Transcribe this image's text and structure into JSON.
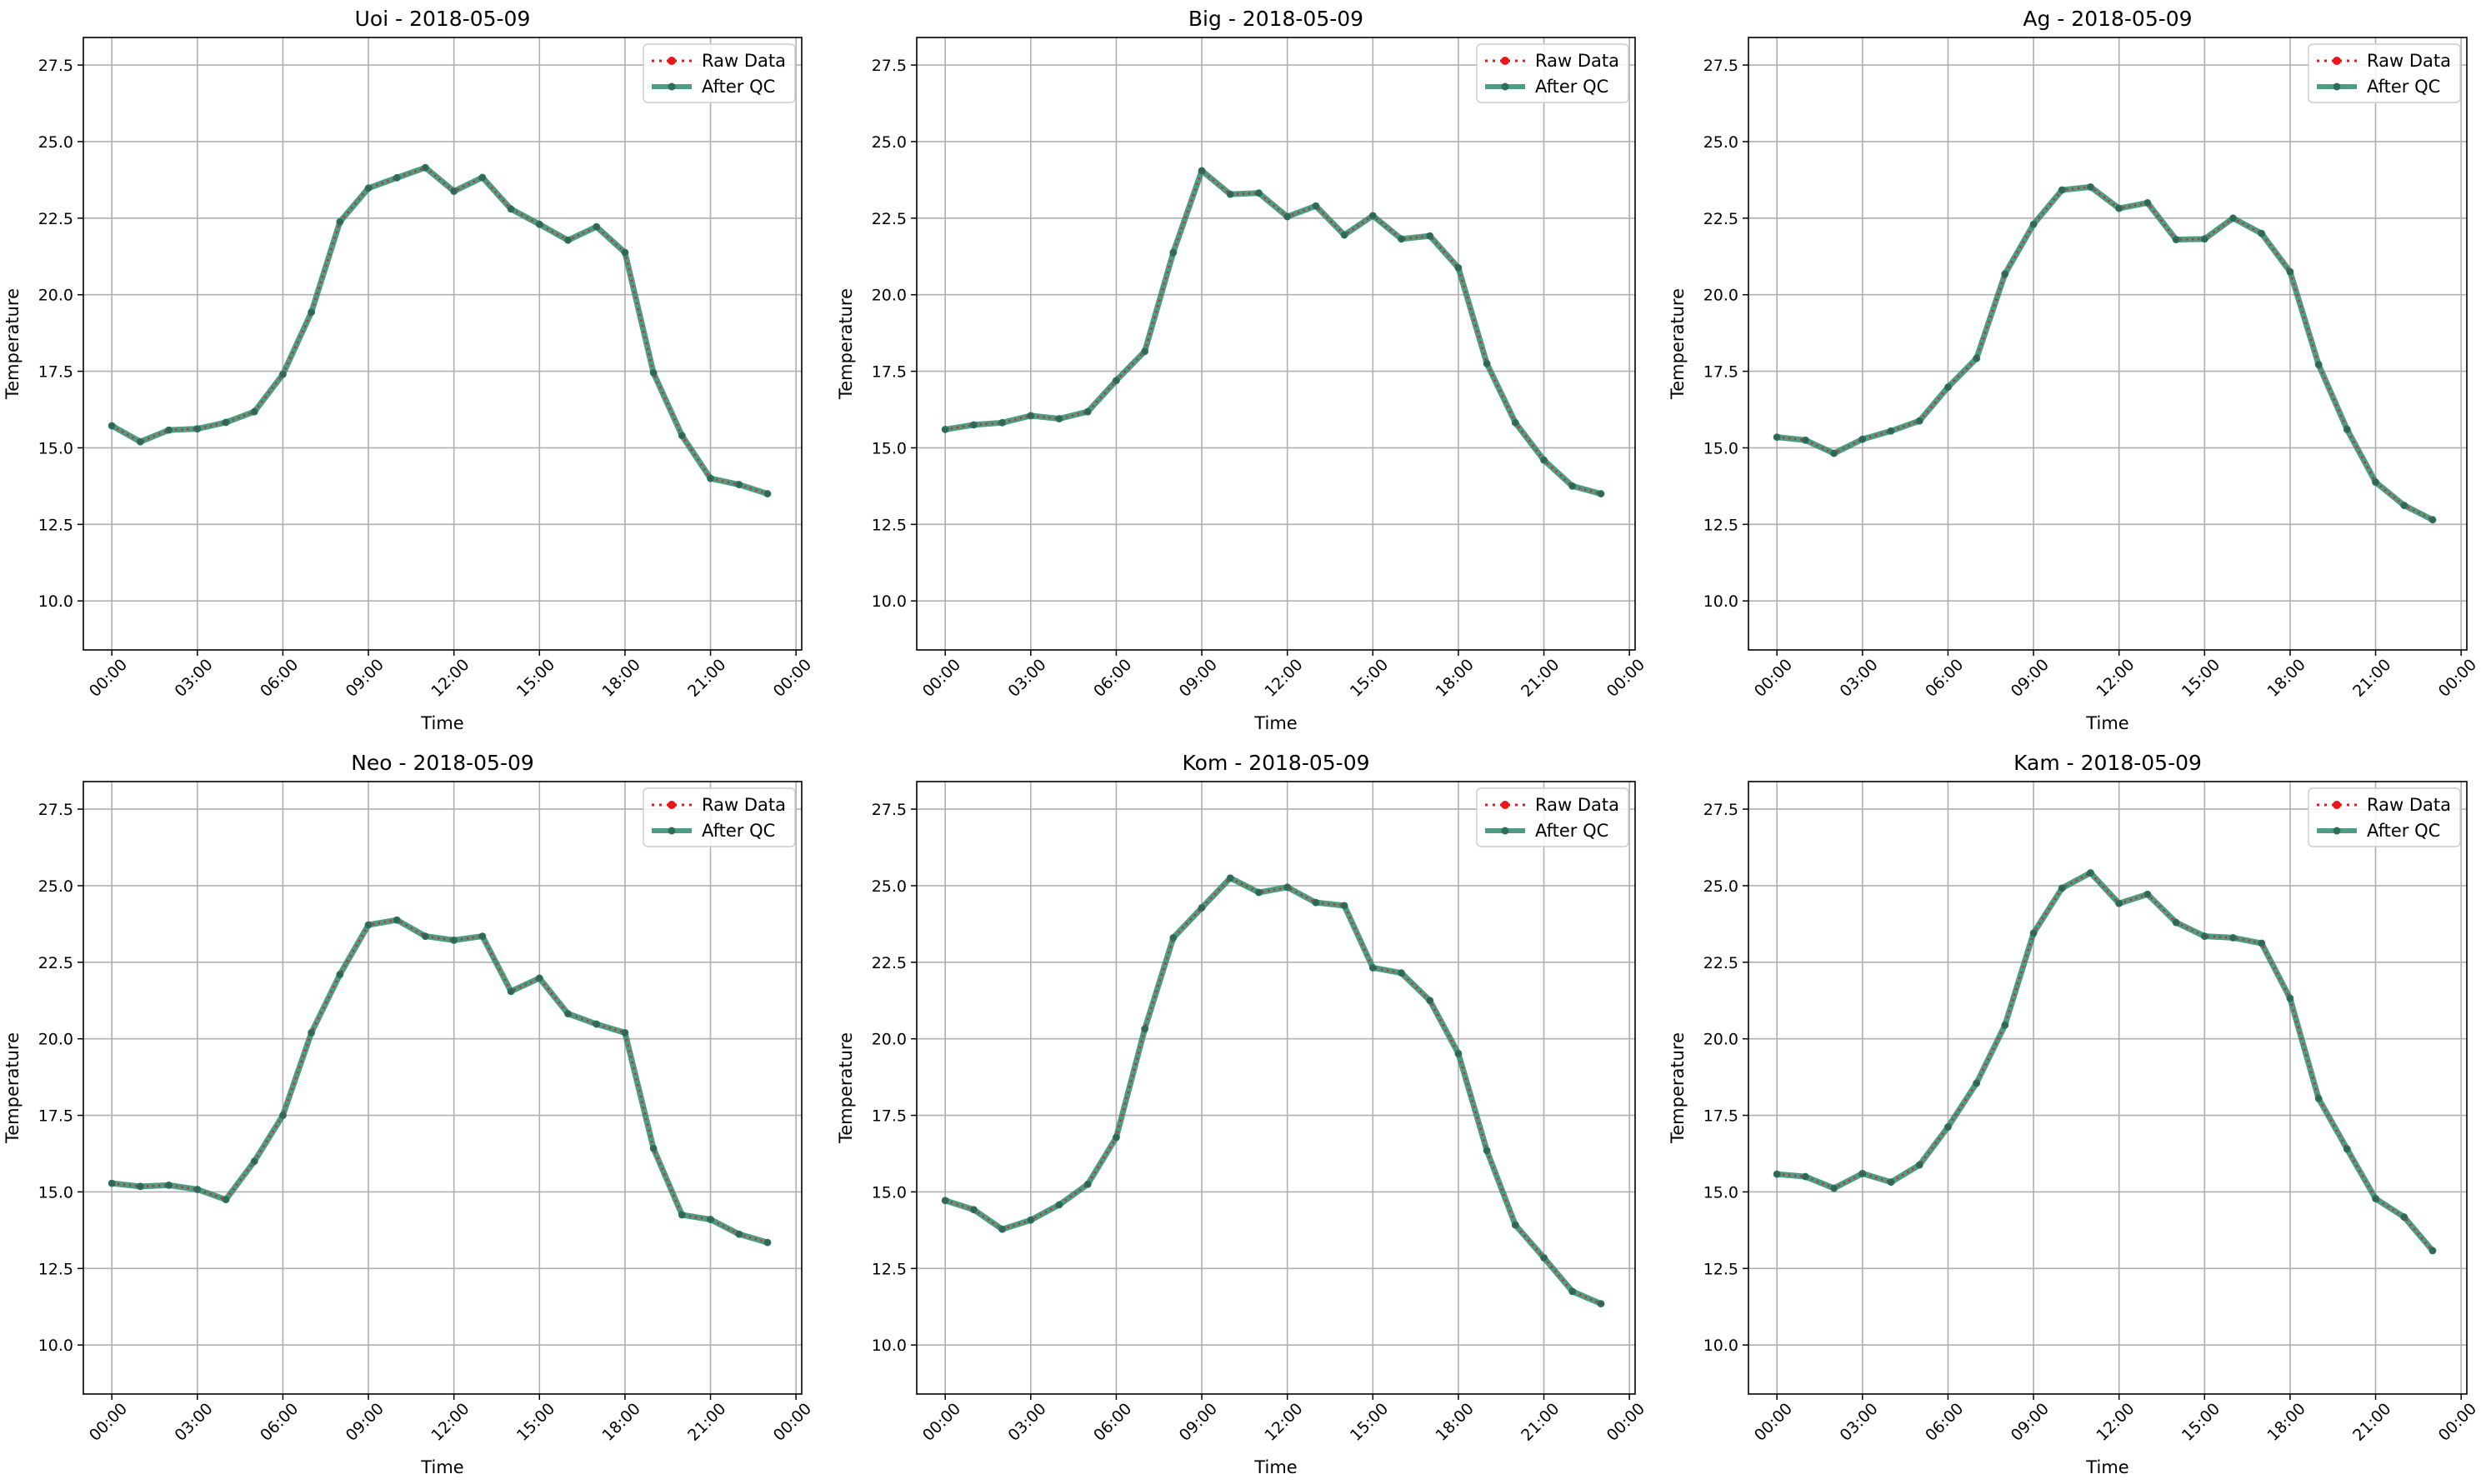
{
  "figure": {
    "x_label": "Time",
    "y_label": "Temperature",
    "x_ticks": [
      "00:00",
      "03:00",
      "06:00",
      "09:00",
      "12:00",
      "15:00",
      "18:00",
      "21:00",
      "00:00"
    ],
    "y_ticks": [
      "10.0",
      "12.5",
      "15.0",
      "17.5",
      "20.0",
      "22.5",
      "25.0",
      "27.5"
    ],
    "legend": [
      "Raw Data",
      "After QC"
    ],
    "colors": {
      "raw": "#e6191a",
      "qc": "#2e8b6e",
      "grid": "#b0b0b0"
    }
  },
  "chart_data": [
    {
      "type": "line",
      "title": "Uoi - 2018-05-09",
      "xlabel": "Time",
      "ylabel": "Temperature",
      "ylim": [
        8.4,
        28.4
      ],
      "xlim_hours": [
        -1.0,
        24.2
      ],
      "grid": true,
      "legend_position": "top-right",
      "x": [
        "00:00",
        "01:00",
        "02:00",
        "03:00",
        "04:00",
        "05:00",
        "06:00",
        "07:00",
        "08:00",
        "09:00",
        "10:00",
        "11:00",
        "12:00",
        "13:00",
        "14:00",
        "15:00",
        "16:00",
        "17:00",
        "18:00",
        "19:00",
        "20:00",
        "21:00",
        "22:00",
        "23:00"
      ],
      "series": [
        {
          "name": "Raw Data",
          "values": [
            15.72,
            15.2,
            15.58,
            15.62,
            15.83,
            16.18,
            17.4,
            19.43,
            22.38,
            23.48,
            23.82,
            24.15,
            23.38,
            23.83,
            22.8,
            22.3,
            21.78,
            22.22,
            21.38,
            17.45,
            15.4,
            14.0,
            13.8,
            13.5
          ]
        },
        {
          "name": "After QC",
          "values": [
            15.72,
            15.2,
            15.58,
            15.62,
            15.83,
            16.18,
            17.4,
            19.43,
            22.38,
            23.48,
            23.82,
            24.15,
            23.38,
            23.83,
            22.8,
            22.3,
            21.78,
            22.22,
            21.38,
            17.45,
            15.4,
            14.0,
            13.8,
            13.5
          ]
        }
      ]
    },
    {
      "type": "line",
      "title": "Big - 2018-05-09",
      "xlabel": "Time",
      "ylabel": "Temperature",
      "ylim": [
        8.4,
        28.4
      ],
      "xlim_hours": [
        -1.0,
        24.2
      ],
      "grid": true,
      "legend_position": "top-right",
      "x": [
        "00:00",
        "01:00",
        "02:00",
        "03:00",
        "04:00",
        "05:00",
        "06:00",
        "07:00",
        "08:00",
        "09:00",
        "10:00",
        "11:00",
        "12:00",
        "13:00",
        "14:00",
        "15:00",
        "16:00",
        "17:00",
        "18:00",
        "19:00",
        "20:00",
        "21:00",
        "22:00",
        "23:00"
      ],
      "series": [
        {
          "name": "Raw Data",
          "values": [
            15.6,
            15.75,
            15.82,
            16.05,
            15.95,
            16.18,
            17.2,
            18.15,
            21.38,
            24.05,
            23.28,
            23.32,
            22.55,
            22.9,
            21.95,
            22.58,
            21.82,
            21.92,
            20.88,
            17.75,
            15.82,
            14.6,
            13.75,
            13.5
          ]
        },
        {
          "name": "After QC",
          "values": [
            15.6,
            15.75,
            15.82,
            16.05,
            15.95,
            16.18,
            17.2,
            18.15,
            21.38,
            24.05,
            23.28,
            23.32,
            22.55,
            22.9,
            21.95,
            22.58,
            21.82,
            21.92,
            20.88,
            17.75,
            15.82,
            14.6,
            13.75,
            13.5
          ]
        }
      ]
    },
    {
      "type": "line",
      "title": "Ag - 2018-05-09",
      "xlabel": "Time",
      "ylabel": "Temperature",
      "ylim": [
        8.4,
        28.4
      ],
      "xlim_hours": [
        -1.0,
        24.2
      ],
      "grid": true,
      "legend_position": "top-right",
      "x": [
        "00:00",
        "01:00",
        "02:00",
        "03:00",
        "04:00",
        "05:00",
        "06:00",
        "07:00",
        "08:00",
        "09:00",
        "10:00",
        "11:00",
        "12:00",
        "13:00",
        "14:00",
        "15:00",
        "16:00",
        "17:00",
        "18:00",
        "19:00",
        "20:00",
        "21:00",
        "22:00",
        "23:00"
      ],
      "series": [
        {
          "name": "Raw Data",
          "values": [
            15.35,
            15.25,
            14.82,
            15.28,
            15.55,
            15.88,
            16.98,
            17.92,
            20.68,
            22.3,
            23.42,
            23.52,
            22.82,
            23.0,
            21.8,
            21.82,
            22.5,
            22.0,
            20.75,
            17.72,
            15.6,
            13.88,
            13.12,
            12.65
          ]
        },
        {
          "name": "After QC",
          "values": [
            15.35,
            15.25,
            14.82,
            15.28,
            15.55,
            15.88,
            16.98,
            17.92,
            20.68,
            22.3,
            23.42,
            23.52,
            22.82,
            23.0,
            21.8,
            21.82,
            22.5,
            22.0,
            20.75,
            17.72,
            15.6,
            13.88,
            13.12,
            12.65
          ]
        }
      ]
    },
    {
      "type": "line",
      "title": "Neo - 2018-05-09",
      "xlabel": "Time",
      "ylabel": "Temperature",
      "ylim": [
        8.4,
        28.4
      ],
      "xlim_hours": [
        -1.0,
        24.2
      ],
      "grid": true,
      "legend_position": "top-right",
      "x": [
        "00:00",
        "01:00",
        "02:00",
        "03:00",
        "04:00",
        "05:00",
        "06:00",
        "07:00",
        "08:00",
        "09:00",
        "10:00",
        "11:00",
        "12:00",
        "13:00",
        "14:00",
        "15:00",
        "16:00",
        "17:00",
        "18:00",
        "19:00",
        "20:00",
        "21:00",
        "22:00",
        "23:00"
      ],
      "series": [
        {
          "name": "Raw Data",
          "values": [
            15.28,
            15.18,
            15.22,
            15.08,
            14.75,
            16.0,
            17.5,
            20.2,
            22.1,
            23.72,
            23.88,
            23.35,
            23.22,
            23.35,
            21.55,
            21.98,
            20.82,
            20.48,
            20.2,
            16.42,
            14.25,
            14.1,
            13.62,
            13.35
          ]
        },
        {
          "name": "After QC",
          "values": [
            15.28,
            15.18,
            15.22,
            15.08,
            14.75,
            16.0,
            17.5,
            20.2,
            22.1,
            23.72,
            23.88,
            23.35,
            23.22,
            23.35,
            21.55,
            21.98,
            20.82,
            20.48,
            20.2,
            16.42,
            14.25,
            14.1,
            13.62,
            13.35
          ]
        }
      ]
    },
    {
      "type": "line",
      "title": "Kom - 2018-05-09",
      "xlabel": "Time",
      "ylabel": "Temperature",
      "ylim": [
        8.4,
        28.4
      ],
      "xlim_hours": [
        -1.0,
        24.2
      ],
      "grid": true,
      "legend_position": "top-right",
      "x": [
        "00:00",
        "01:00",
        "02:00",
        "03:00",
        "04:00",
        "05:00",
        "06:00",
        "07:00",
        "08:00",
        "09:00",
        "10:00",
        "11:00",
        "12:00",
        "13:00",
        "14:00",
        "15:00",
        "16:00",
        "17:00",
        "18:00",
        "19:00",
        "20:00",
        "21:00",
        "22:00",
        "23:00"
      ],
      "series": [
        {
          "name": "Raw Data",
          "values": [
            14.72,
            14.42,
            13.78,
            14.08,
            14.58,
            15.25,
            16.78,
            20.32,
            23.3,
            24.28,
            25.25,
            24.78,
            24.95,
            24.45,
            24.35,
            22.32,
            22.15,
            21.25,
            19.52,
            16.35,
            13.92,
            12.85,
            11.75,
            11.35
          ]
        },
        {
          "name": "After QC",
          "values": [
            14.72,
            14.42,
            13.78,
            14.08,
            14.58,
            15.25,
            16.78,
            20.32,
            23.3,
            24.28,
            25.25,
            24.78,
            24.95,
            24.45,
            24.35,
            22.32,
            22.15,
            21.25,
            19.52,
            16.35,
            13.92,
            12.85,
            11.75,
            11.35
          ]
        }
      ]
    },
    {
      "type": "line",
      "title": "Kam - 2018-05-09",
      "xlabel": "Time",
      "ylabel": "Temperature",
      "ylim": [
        8.4,
        28.4
      ],
      "xlim_hours": [
        -1.0,
        24.2
      ],
      "grid": true,
      "legend_position": "top-right",
      "x": [
        "00:00",
        "01:00",
        "02:00",
        "03:00",
        "04:00",
        "05:00",
        "06:00",
        "07:00",
        "08:00",
        "09:00",
        "10:00",
        "11:00",
        "12:00",
        "13:00",
        "14:00",
        "15:00",
        "16:00",
        "17:00",
        "18:00",
        "19:00",
        "20:00",
        "21:00",
        "22:00",
        "23:00"
      ],
      "series": [
        {
          "name": "Raw Data",
          "values": [
            15.58,
            15.5,
            15.12,
            15.6,
            15.32,
            15.88,
            17.12,
            18.55,
            20.45,
            23.45,
            24.92,
            25.42,
            24.42,
            24.72,
            23.8,
            23.35,
            23.3,
            23.12,
            21.32,
            18.05,
            16.4,
            14.78,
            14.18,
            13.08
          ]
        },
        {
          "name": "After QC",
          "values": [
            15.58,
            15.5,
            15.12,
            15.6,
            15.32,
            15.88,
            17.12,
            18.55,
            20.45,
            23.45,
            24.92,
            25.42,
            24.42,
            24.72,
            23.8,
            23.35,
            23.3,
            23.12,
            21.32,
            18.05,
            16.4,
            14.78,
            14.18,
            13.08
          ]
        }
      ]
    }
  ]
}
